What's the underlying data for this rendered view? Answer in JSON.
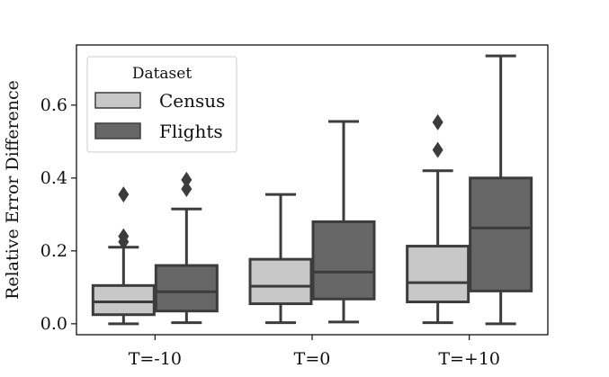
{
  "chart_data": {
    "type": "box",
    "title": "",
    "xlabel": "",
    "ylabel": "Relative Error Difference",
    "categories": [
      "T=-10",
      "T=0",
      "T=+10"
    ],
    "ylim": [
      -0.03,
      0.765
    ],
    "yticks": [
      0.0,
      0.2,
      0.4,
      0.6
    ],
    "ytick_labels": [
      "0.0",
      "0.2",
      "0.4",
      "0.6"
    ],
    "grid": false,
    "legend": {
      "title": "Dataset",
      "placement": "top-left"
    },
    "series": [
      {
        "name": "Census",
        "color": "#c8c8c8",
        "boxes": [
          {
            "whisker_low": 0.0,
            "q1": 0.025,
            "median": 0.06,
            "q3": 0.105,
            "whisker_high": 0.21,
            "outliers": [
              0.225,
              0.24,
              0.355
            ]
          },
          {
            "whisker_low": 0.003,
            "q1": 0.055,
            "median": 0.103,
            "q3": 0.177,
            "whisker_high": 0.355,
            "outliers": []
          },
          {
            "whisker_low": 0.003,
            "q1": 0.06,
            "median": 0.113,
            "q3": 0.213,
            "whisker_high": 0.42,
            "outliers": [
              0.477,
              0.553
            ]
          }
        ]
      },
      {
        "name": "Flights",
        "color": "#666666",
        "boxes": [
          {
            "whisker_low": 0.003,
            "q1": 0.035,
            "median": 0.088,
            "q3": 0.16,
            "whisker_high": 0.315,
            "outliers": [
              0.37,
              0.395
            ]
          },
          {
            "whisker_low": 0.005,
            "q1": 0.068,
            "median": 0.142,
            "q3": 0.28,
            "whisker_high": 0.555,
            "outliers": []
          },
          {
            "whisker_low": 0.0,
            "q1": 0.09,
            "median": 0.263,
            "q3": 0.4,
            "whisker_high": 0.735,
            "outliers": []
          }
        ]
      }
    ]
  }
}
